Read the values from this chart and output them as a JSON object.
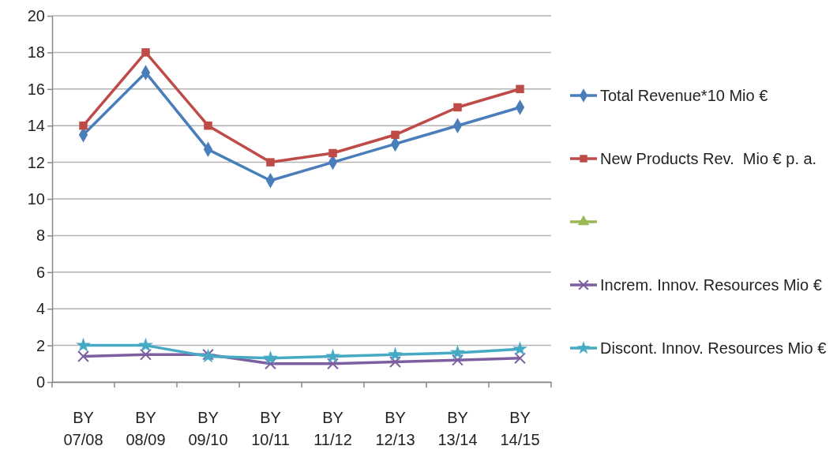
{
  "chart_data": {
    "type": "line",
    "categories": [
      "BY 07/08",
      "BY 08/09",
      "BY 09/10",
      "BY 10/11",
      "BY 11/12",
      "BY 12/13",
      "BY 13/14",
      "BY 14/15"
    ],
    "series": [
      {
        "name": "Total Revenue*10 Mio €",
        "color": "#4a7ebb",
        "marker": "diamond",
        "values": [
          13.5,
          16.9,
          12.7,
          11,
          12,
          13,
          14,
          15
        ]
      },
      {
        "name": "New Products Rev.  Mio € p. a.",
        "color": "#be4b48",
        "marker": "square",
        "values": [
          14,
          18,
          14,
          12,
          12.5,
          13.5,
          15,
          16
        ]
      },
      {
        "color": "#98b954",
        "marker": "triangle",
        "values": [
          null,
          null,
          null,
          null,
          null,
          null,
          null,
          null
        ]
      },
      {
        "name": "Increm. Innov. Resources Mio €",
        "color": "#7d5fa0",
        "marker": "cross",
        "values": [
          1.4,
          1.5,
          1.5,
          1.0,
          1.0,
          1.1,
          1.2,
          1.3
        ]
      },
      {
        "name": "Discont. Innov. Resources Mio €",
        "color": "#46aac5",
        "marker": "star",
        "values": [
          2,
          2,
          1.4,
          1.3,
          1.4,
          1.5,
          1.6,
          1.8
        ]
      }
    ],
    "ylim": [
      0,
      20
    ],
    "yticks": [
      0,
      2,
      4,
      6,
      8,
      10,
      12,
      14,
      16,
      18,
      20
    ],
    "grid": "y",
    "legend": "right",
    "line_style": "solid"
  }
}
